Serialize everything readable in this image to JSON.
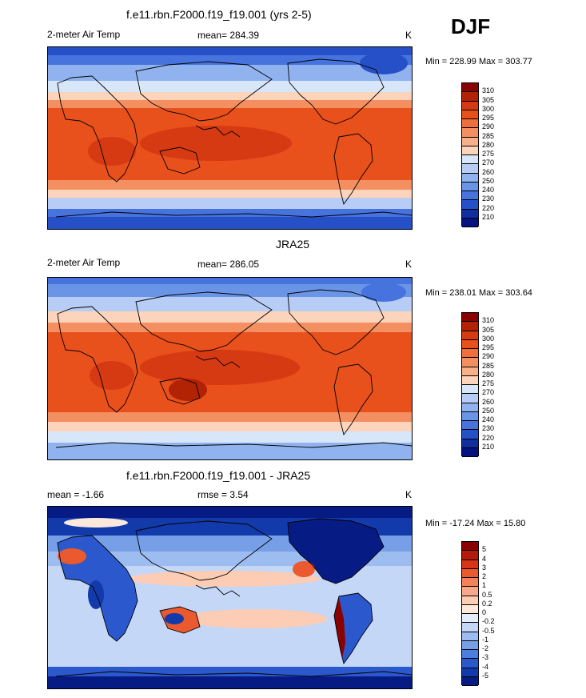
{
  "season": "DJF",
  "panels": [
    {
      "title": "f.e11.rbn.F2000.f19_f19.001 (yrs 2-5)",
      "variable": "2-meter Air Temp",
      "stat": "mean= 284.39",
      "units": "K",
      "minmax": "Min = 228.99 Max = 303.77",
      "legend": [
        "310",
        "305",
        "300",
        "295",
        "290",
        "285",
        "280",
        "275",
        "270",
        "260",
        "250",
        "240",
        "230",
        "220",
        "210"
      ],
      "legend_colors": [
        "#8b0000",
        "#b22204",
        "#d63a12",
        "#e8501c",
        "#f06e3c",
        "#f48f62",
        "#f8b08a",
        "#fcd4bb",
        "#d8e6fa",
        "#b7cdf5",
        "#90b3ef",
        "#6a95e7",
        "#4773de",
        "#2650c7",
        "#102ea0",
        "#041380"
      ]
    },
    {
      "title": "JRA25",
      "variable": "2-meter Air Temp",
      "stat": "mean= 286.05",
      "units": "K",
      "minmax": "Min = 238.01 Max = 303.64",
      "legend": [
        "310",
        "305",
        "300",
        "295",
        "290",
        "285",
        "280",
        "275",
        "270",
        "260",
        "250",
        "240",
        "230",
        "220",
        "210"
      ],
      "legend_colors": [
        "#8b0000",
        "#b22204",
        "#d63a12",
        "#e8501c",
        "#f06e3c",
        "#f48f62",
        "#f8b08a",
        "#fcd4bb",
        "#d8e6fa",
        "#b7cdf5",
        "#90b3ef",
        "#6a95e7",
        "#4773de",
        "#2650c7",
        "#102ea0",
        "#041380"
      ]
    },
    {
      "title": "f.e11.rbn.F2000.f19_f19.001 - JRA25",
      "stat": "mean =  -1.66",
      "stat2": "rmse =    3.54",
      "units": "K",
      "minmax": "Min = -17.24 Max =  15.80",
      "legend": [
        "5",
        "4",
        "3",
        "2",
        "1",
        "0.5",
        "0.2",
        "0",
        "-0.2",
        "-0.5",
        "-1",
        "-2",
        "-3",
        "-4",
        "-5"
      ],
      "legend_colors": [
        "#8b0000",
        "#b31a0a",
        "#d8341a",
        "#ea5a2e",
        "#f4815a",
        "#f8a888",
        "#fcccb4",
        "#fde8dc",
        "#e3edfb",
        "#c4d7f6",
        "#9dbdf0",
        "#769fe8",
        "#4e7de0",
        "#2b58cc",
        "#123aaa",
        "#061c84"
      ]
    }
  ]
}
